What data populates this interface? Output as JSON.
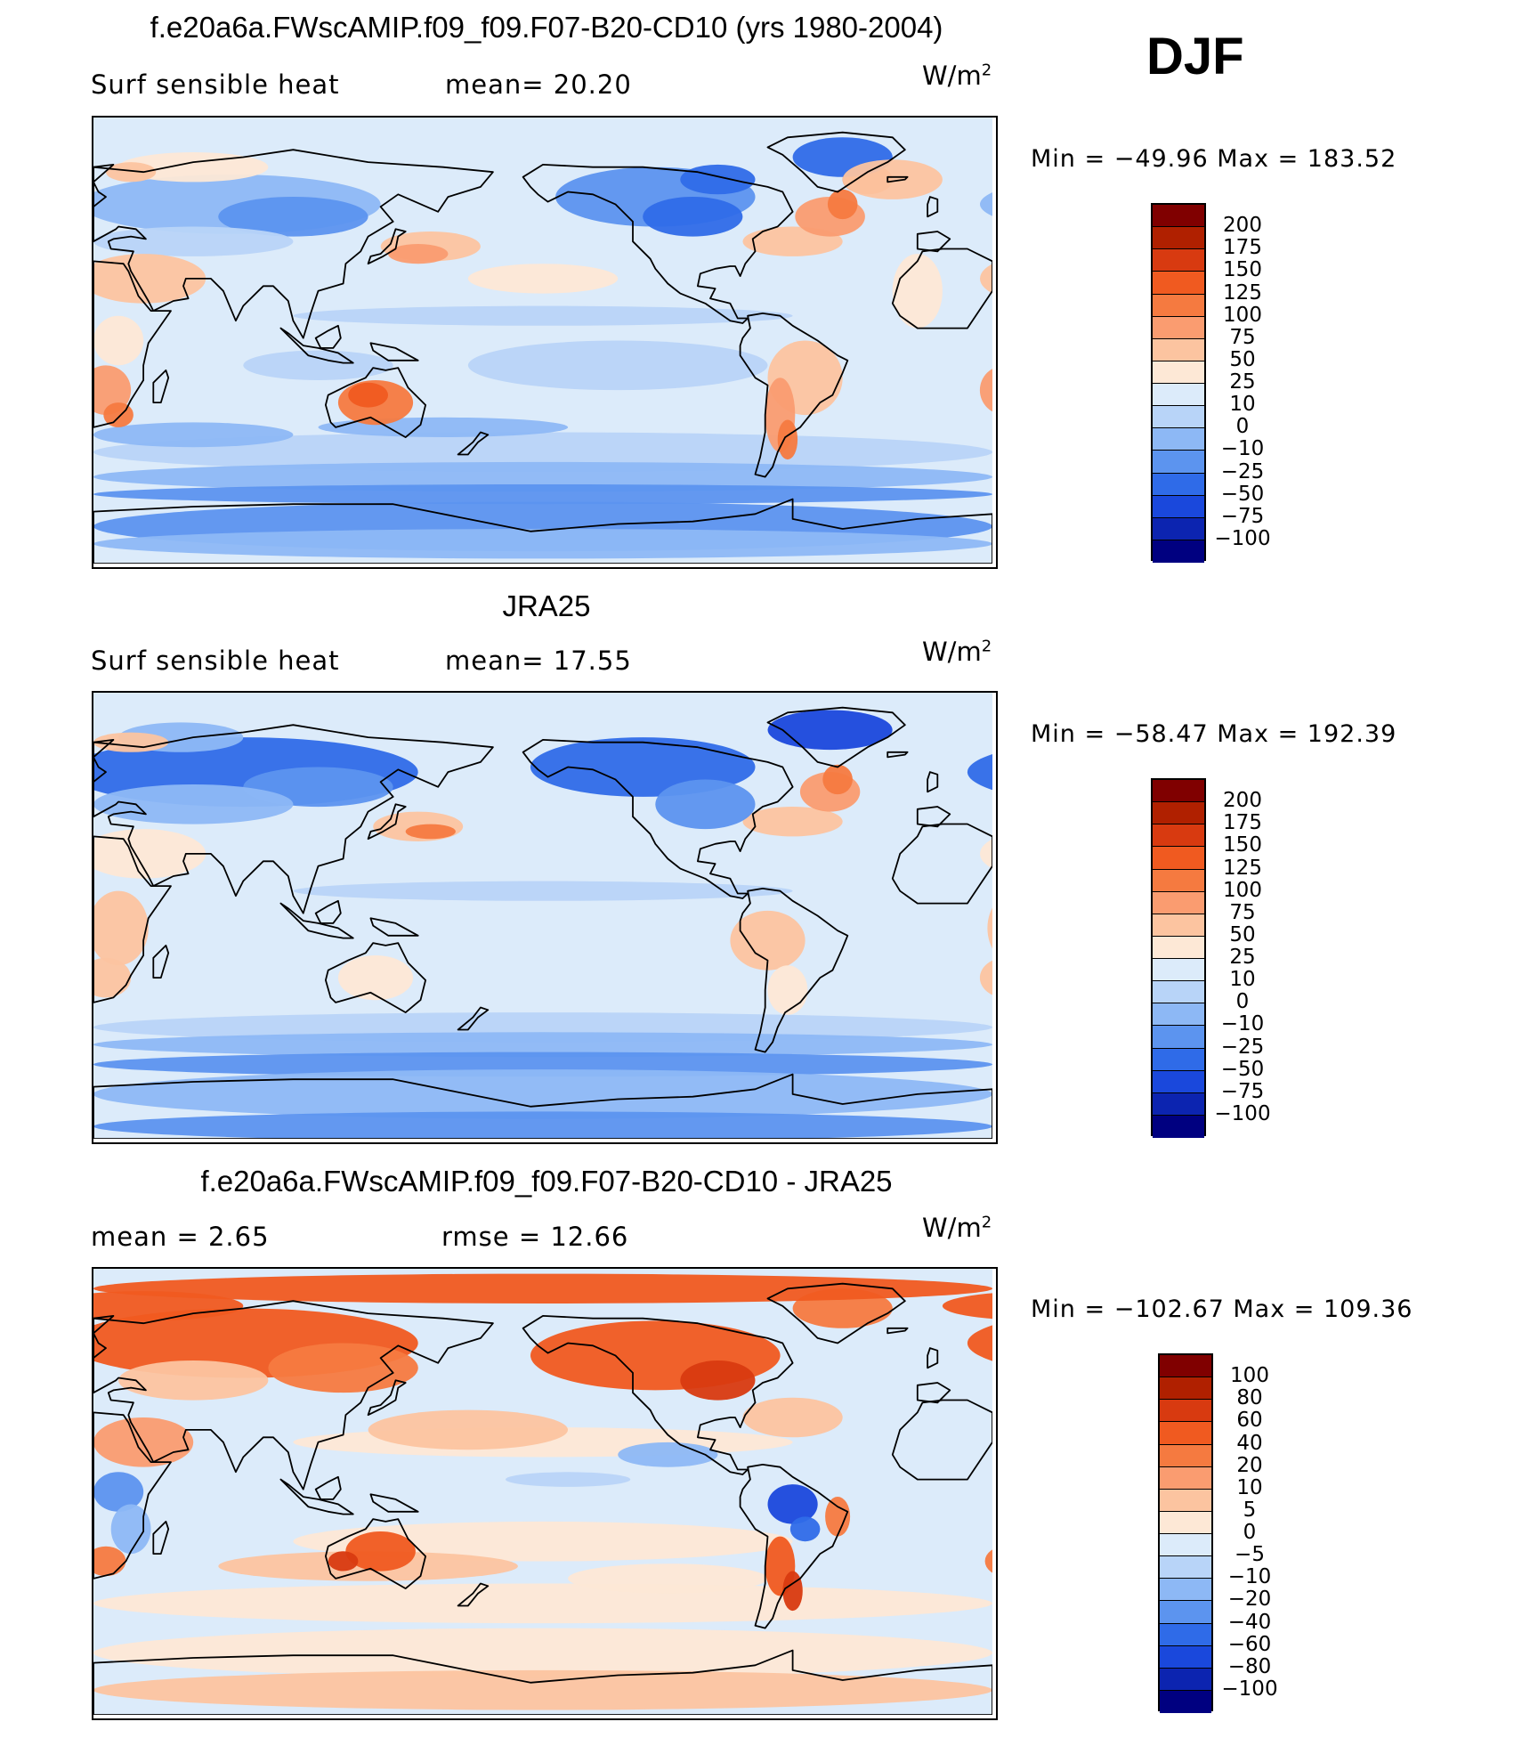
{
  "season": "DJF",
  "panels": [
    {
      "title": "f.e20a6a.FWscAMIP.f09_f09.F07-B20-CD10 (yrs 1980-2004)",
      "left_label": "Surf  sensible  heat",
      "mid_label": "mean=   20.20",
      "unit": "W/m",
      "unit_exp": "2",
      "minmax": "Min  =  −49.96  Max  =  183.52",
      "style": "model"
    },
    {
      "title": "JRA25",
      "left_label": "Surf  sensible  heat",
      "mid_label": "mean=   17.55",
      "unit": "W/m",
      "unit_exp": "2",
      "minmax": "Min  =  −58.47  Max  =  192.39",
      "style": "obs"
    },
    {
      "title": "f.e20a6a.FWscAMIP.f09_f09.F07-B20-CD10 - JRA25",
      "left_label": "mean  =     2.65",
      "mid_label": "rmse  =     12.66",
      "unit": "W/m",
      "unit_exp": "2",
      "minmax": "Min  =  −102.67  Max  =  109.36",
      "style": "diff"
    }
  ],
  "colorbars": [
    {
      "labels": [
        "200",
        "175",
        "150",
        "125",
        "100",
        "75",
        "50",
        "25",
        "10",
        "0",
        "−10",
        "−25",
        "−50",
        "−75",
        "−100"
      ],
      "colors": [
        "#800000",
        "#b02000",
        "#d83a10",
        "#f05a20",
        "#f57a40",
        "#fa9c70",
        "#fcc4a0",
        "#fde8d6",
        "#dcebfa",
        "#b8d4f8",
        "#8db8f5",
        "#5c94ef",
        "#2f6be8",
        "#1a48dc",
        "#0c24b0",
        "#000080"
      ]
    },
    {
      "labels": [
        "200",
        "175",
        "150",
        "125",
        "100",
        "75",
        "50",
        "25",
        "10",
        "0",
        "−10",
        "−25",
        "−50",
        "−75",
        "−100"
      ],
      "colors": [
        "#800000",
        "#b02000",
        "#d83a10",
        "#f05a20",
        "#f57a40",
        "#fa9c70",
        "#fcc4a0",
        "#fde8d6",
        "#dcebfa",
        "#b8d4f8",
        "#8db8f5",
        "#5c94ef",
        "#2f6be8",
        "#1a48dc",
        "#0c24b0",
        "#000080"
      ]
    },
    {
      "labels": [
        "100",
        "80",
        "60",
        "40",
        "20",
        "10",
        "5",
        "0",
        "−5",
        "−10",
        "−20",
        "−40",
        "−60",
        "−80",
        "−100"
      ],
      "colors": [
        "#800000",
        "#b02000",
        "#d83a10",
        "#f05a20",
        "#f57a40",
        "#fa9c70",
        "#fcc4a0",
        "#fde8d6",
        "#dcebfa",
        "#b8d4f8",
        "#8db8f5",
        "#5c94ef",
        "#2f6be8",
        "#1a48dc",
        "#0c24b0",
        "#000080"
      ]
    }
  ]
}
